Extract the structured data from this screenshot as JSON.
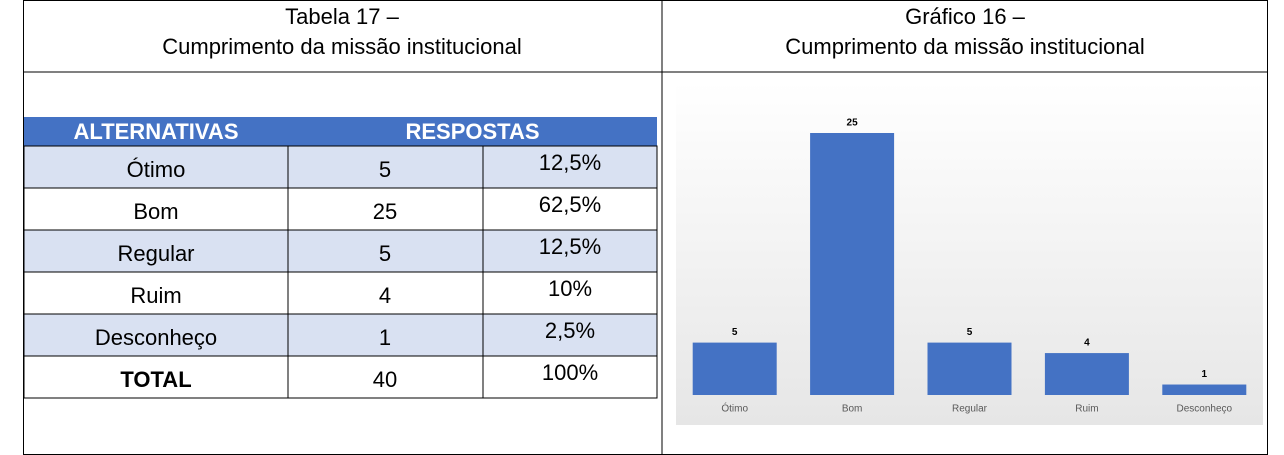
{
  "table_caption": {
    "line1": "Tabela 17 –",
    "line2": "Cumprimento da missão institucional"
  },
  "chart_caption": {
    "line1": "Gráfico 16 –",
    "line2": "Cumprimento da missão institucional"
  },
  "table": {
    "header": [
      "ALTERNATIVAS",
      "RESPOSTAS"
    ],
    "rows": [
      [
        "Ótimo",
        "5",
        "12,5%"
      ],
      [
        "Bom",
        "25",
        "62,5%"
      ],
      [
        "Regular",
        "5",
        "12,5%"
      ],
      [
        "Ruim",
        "4",
        "10%"
      ],
      [
        "Desconheço",
        "1",
        "2,5%"
      ],
      [
        "TOTAL",
        "40",
        "100%"
      ]
    ]
  },
  "chart_data": {
    "type": "bar",
    "categories": [
      "Ótimo",
      "Bom",
      "Regular",
      "Ruim",
      "Desconheço"
    ],
    "values": [
      5,
      25,
      5,
      4,
      1
    ],
    "color": "#4472c4"
  }
}
